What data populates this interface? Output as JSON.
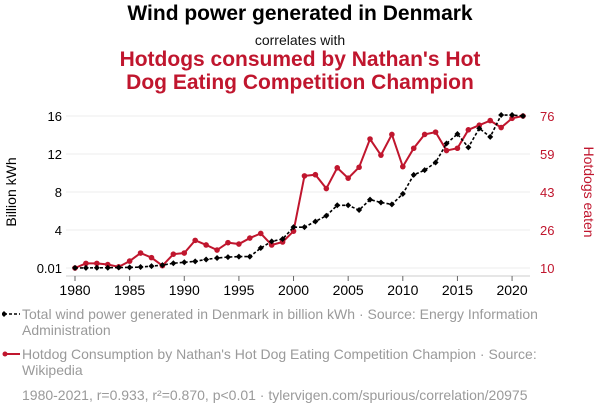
{
  "header": {
    "title": "Wind power generated in Denmark",
    "subtitle": "correlates with",
    "title2": "Hotdogs consumed by Nathan's Hot Dog Eating Competition Champion"
  },
  "colors": {
    "series1": "#000000",
    "series2": "#c0162e",
    "grid": "#eeeeee",
    "muted_text": "#9a9a9a"
  },
  "chart_data": {
    "type": "line",
    "title": "Wind power generated in Denmark correlates with Hotdogs consumed by Nathan's Hot Dog Eating Competition Champion",
    "xlabel": "",
    "ylabel_left": "Billion kWh",
    "ylabel_right": "Hotdogs eaten",
    "x": [
      1980,
      1981,
      1982,
      1983,
      1984,
      1985,
      1986,
      1987,
      1988,
      1989,
      1990,
      1991,
      1992,
      1993,
      1994,
      1995,
      1996,
      1997,
      1998,
      1999,
      2000,
      2001,
      2002,
      2003,
      2004,
      2005,
      2006,
      2007,
      2008,
      2009,
      2010,
      2011,
      2012,
      2013,
      2014,
      2015,
      2016,
      2017,
      2018,
      2019,
      2020,
      2021
    ],
    "x_ticks": [
      "1980",
      "1985",
      "1990",
      "1995",
      "2000",
      "2005",
      "2010",
      "2015",
      "2020"
    ],
    "y_left_ticks": [
      "0.01",
      "4",
      "8",
      "12",
      "16"
    ],
    "y_left_range": [
      0.01,
      16
    ],
    "y_right_ticks": [
      "10",
      "26",
      "43",
      "59",
      "76"
    ],
    "y_right_range": [
      10,
      76
    ],
    "grid": true,
    "series": [
      {
        "name": "Total wind power generated in Denmark in billion kWh",
        "axis": "left",
        "style": "dashed-diamond",
        "values": [
          0.01,
          0.01,
          0.02,
          0.03,
          0.05,
          0.06,
          0.1,
          0.2,
          0.3,
          0.5,
          0.6,
          0.7,
          0.9,
          1.05,
          1.15,
          1.2,
          1.2,
          2.1,
          2.8,
          3.05,
          4.3,
          4.3,
          4.9,
          5.5,
          6.6,
          6.6,
          6.1,
          7.2,
          6.9,
          6.7,
          7.8,
          9.8,
          10.3,
          11.1,
          13.1,
          14.1,
          12.7,
          14.7,
          13.8,
          16.1,
          16.1,
          16.0
        ]
      },
      {
        "name": "Hotdog Consumption by Nathan's Hot Dog Eating Competition Champion",
        "axis": "right",
        "style": "solid-circle",
        "values": [
          10,
          12,
          12,
          11.5,
          10.5,
          13,
          16.5,
          14.5,
          11,
          16,
          16.5,
          22,
          20,
          17.8,
          21,
          20.4,
          23,
          25,
          20,
          21.3,
          26,
          50,
          50.5,
          44.5,
          53.5,
          49,
          53.75,
          66,
          59,
          68,
          54,
          62,
          68,
          69,
          61,
          62,
          70,
          72,
          74,
          71,
          75,
          76
        ]
      }
    ],
    "legend": [
      "Total wind power generated in Denmark in billion kWh · Source: Energy Information Administration",
      "Hotdog Consumption by Nathan's Hot Dog Eating Competition Champion · Source: Wikipedia"
    ],
    "legend_placement": "bottom",
    "annotation": "1980-2021, r=0.933, r²=0.870, p<0.01 · tylervigen.com/spurious/correlation/20975"
  },
  "legend": {
    "item1": "Total wind power generated in Denmark in billion kWh · Source: Energy Information Administration",
    "item2": "Hotdog Consumption by Nathan's Hot Dog Eating Competition Champion · Source: Wikipedia"
  },
  "footer": "1980-2021, r=0.933, r²=0.870, p<0.01 · tylervigen.com/spurious/correlation/20975"
}
